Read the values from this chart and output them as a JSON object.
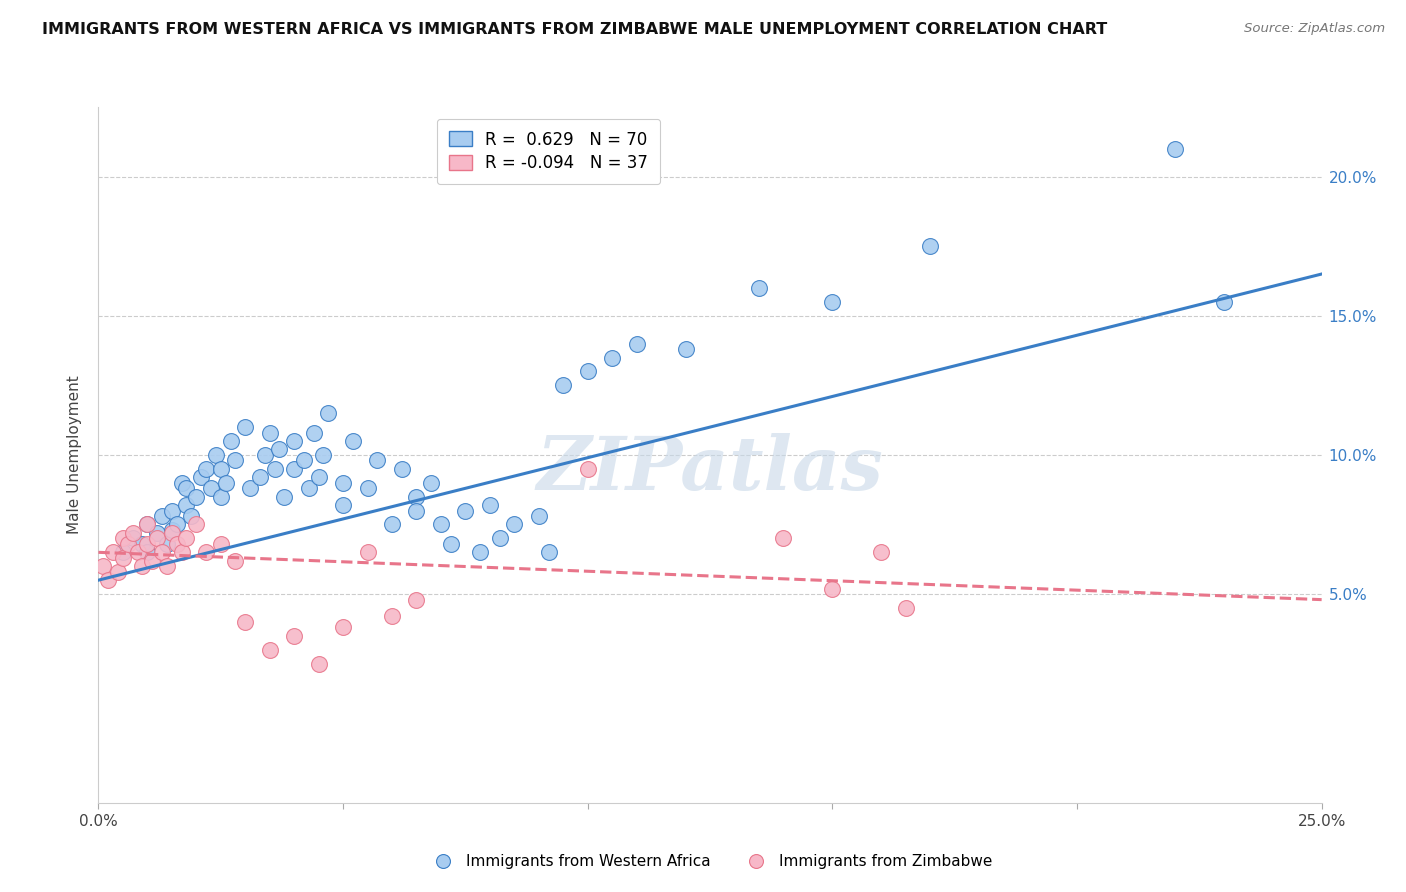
{
  "title": "IMMIGRANTS FROM WESTERN AFRICA VS IMMIGRANTS FROM ZIMBABWE MALE UNEMPLOYMENT CORRELATION CHART",
  "source": "Source: ZipAtlas.com",
  "ylabel": "Male Unemployment",
  "xlim": [
    0.0,
    0.25
  ],
  "ylim": [
    -0.025,
    0.225
  ],
  "blue_R": "0.629",
  "blue_N": "70",
  "pink_R": "-0.094",
  "pink_N": "37",
  "blue_color": "#A8CCF0",
  "pink_color": "#F7B8C8",
  "blue_line_color": "#3A7EC6",
  "pink_line_color": "#E8758A",
  "watermark": "ZIPatlas",
  "legend_label_blue": "Immigrants from Western Africa",
  "legend_label_pink": "Immigrants from Zimbabwe",
  "blue_scatter_x": [
    0.005,
    0.007,
    0.009,
    0.01,
    0.01,
    0.012,
    0.013,
    0.014,
    0.015,
    0.015,
    0.016,
    0.017,
    0.018,
    0.018,
    0.019,
    0.02,
    0.021,
    0.022,
    0.023,
    0.024,
    0.025,
    0.025,
    0.026,
    0.027,
    0.028,
    0.03,
    0.031,
    0.033,
    0.034,
    0.035,
    0.036,
    0.037,
    0.038,
    0.04,
    0.04,
    0.042,
    0.043,
    0.044,
    0.045,
    0.046,
    0.047,
    0.05,
    0.05,
    0.052,
    0.055,
    0.057,
    0.06,
    0.062,
    0.065,
    0.065,
    0.068,
    0.07,
    0.072,
    0.075,
    0.078,
    0.08,
    0.082,
    0.085,
    0.09,
    0.092,
    0.095,
    0.1,
    0.105,
    0.11,
    0.12,
    0.135,
    0.15,
    0.17,
    0.22,
    0.23
  ],
  "blue_scatter_y": [
    0.065,
    0.07,
    0.068,
    0.075,
    0.065,
    0.072,
    0.078,
    0.068,
    0.08,
    0.073,
    0.075,
    0.09,
    0.082,
    0.088,
    0.078,
    0.085,
    0.092,
    0.095,
    0.088,
    0.1,
    0.085,
    0.095,
    0.09,
    0.105,
    0.098,
    0.11,
    0.088,
    0.092,
    0.1,
    0.108,
    0.095,
    0.102,
    0.085,
    0.095,
    0.105,
    0.098,
    0.088,
    0.108,
    0.092,
    0.1,
    0.115,
    0.082,
    0.09,
    0.105,
    0.088,
    0.098,
    0.075,
    0.095,
    0.085,
    0.08,
    0.09,
    0.075,
    0.068,
    0.08,
    0.065,
    0.082,
    0.07,
    0.075,
    0.078,
    0.065,
    0.125,
    0.13,
    0.135,
    0.14,
    0.138,
    0.16,
    0.155,
    0.175,
    0.21,
    0.155
  ],
  "pink_scatter_x": [
    0.001,
    0.002,
    0.003,
    0.004,
    0.005,
    0.005,
    0.006,
    0.007,
    0.008,
    0.009,
    0.01,
    0.01,
    0.011,
    0.012,
    0.013,
    0.014,
    0.015,
    0.016,
    0.017,
    0.018,
    0.02,
    0.022,
    0.025,
    0.028,
    0.03,
    0.035,
    0.04,
    0.045,
    0.05,
    0.055,
    0.06,
    0.065,
    0.1,
    0.14,
    0.15,
    0.16,
    0.165
  ],
  "pink_scatter_y": [
    0.06,
    0.055,
    0.065,
    0.058,
    0.07,
    0.063,
    0.068,
    0.072,
    0.065,
    0.06,
    0.075,
    0.068,
    0.062,
    0.07,
    0.065,
    0.06,
    0.072,
    0.068,
    0.065,
    0.07,
    0.075,
    0.065,
    0.068,
    0.062,
    0.04,
    0.03,
    0.035,
    0.025,
    0.038,
    0.065,
    0.042,
    0.048,
    0.095,
    0.07,
    0.052,
    0.065,
    0.045
  ],
  "blue_line_x": [
    0.0,
    0.25
  ],
  "blue_line_y": [
    0.055,
    0.165
  ],
  "pink_line_x": [
    0.0,
    0.25
  ],
  "pink_line_y": [
    0.065,
    0.048
  ]
}
